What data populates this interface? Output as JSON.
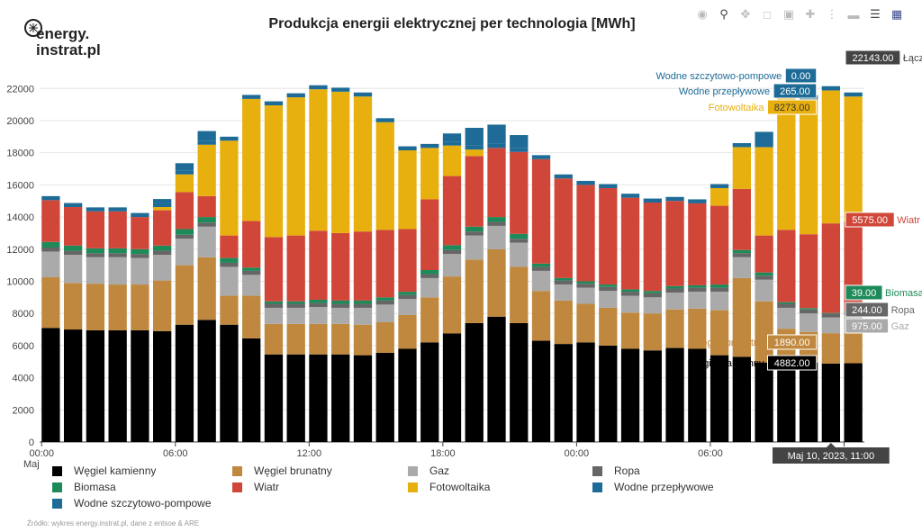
{
  "title": "Produkcja energii elektrycznej per technologia [MWh]",
  "logo": {
    "line1": "energy.",
    "line2": "instrat.pl"
  },
  "source_text": "Źródło: wykres energy.instrat.pl, dane z entsoe & ARE",
  "x_sub_label": "Maj",
  "toolbar": [
    "camera-icon",
    "zoom-icon",
    "pan-icon",
    "box-select-icon",
    "zoom-in-icon",
    "autoscale-icon",
    "spike-lines-icon",
    "hover-closest-icon",
    "hover-compare-icon",
    "plotly-logo-icon"
  ],
  "chart_data": {
    "type": "bar",
    "stacked": true,
    "x": [
      "00:00",
      "01:00",
      "02:00",
      "03:00",
      "04:00",
      "05:00",
      "06:00",
      "07:00",
      "08:00",
      "09:00",
      "10:00",
      "11:00",
      "12:00",
      "13:00",
      "14:00",
      "15:00",
      "16:00",
      "17:00",
      "18:00",
      "19:00",
      "20:00",
      "21:00",
      "22:00",
      "23:00",
      "00:00",
      "01:00",
      "02:00",
      "03:00",
      "04:00",
      "05:00",
      "06:00",
      "07:00",
      "08:00",
      "09:00",
      "10:00",
      "11:00",
      "12:00"
    ],
    "x_tick_labels": [
      "00:00",
      "06:00",
      "12:00",
      "18:00",
      "00:00",
      "06:00",
      "12:00"
    ],
    "ylim": [
      0,
      22800
    ],
    "y_ticks": [
      0,
      2000,
      4000,
      6000,
      8000,
      10000,
      12000,
      14000,
      16000,
      18000,
      20000,
      22000
    ],
    "series": [
      {
        "name": "Węgiel kamienny",
        "color": "#000000",
        "values": [
          7100,
          7000,
          6950,
          6950,
          6950,
          6900,
          7300,
          7600,
          7300,
          6450,
          5450,
          5450,
          5450,
          5450,
          5400,
          5550,
          5800,
          6200,
          6750,
          7400,
          7800,
          7400,
          6300,
          6100,
          6200,
          6000,
          5800,
          5700,
          5850,
          5800,
          5400,
          5300,
          4950,
          4800,
          4950,
          4882,
          4900
        ]
      },
      {
        "name": "Węgiel brunatny",
        "color": "#c0883e",
        "values": [
          3150,
          2900,
          2900,
          2850,
          2850,
          3150,
          3700,
          3900,
          1800,
          2650,
          1900,
          1900,
          1900,
          1900,
          1900,
          1900,
          2100,
          2800,
          3550,
          3950,
          4200,
          3500,
          3100,
          2700,
          2400,
          2350,
          2250,
          2300,
          2400,
          2500,
          2800,
          4900,
          3800,
          2250,
          1900,
          1890,
          1900
        ]
      },
      {
        "name": "Gaz",
        "color": "#aaaaaa",
        "values": [
          1600,
          1750,
          1650,
          1700,
          1650,
          1600,
          1650,
          1900,
          1800,
          1300,
          1000,
          1000,
          1050,
          1000,
          1050,
          1100,
          1000,
          1200,
          1400,
          1500,
          1450,
          1500,
          1250,
          1000,
          1000,
          1050,
          1050,
          1000,
          1050,
          1050,
          1150,
          1300,
          1350,
          1300,
          1150,
          975,
          1100
        ]
      },
      {
        "name": "Ropa",
        "color": "#666666",
        "values": [
          250,
          250,
          250,
          250,
          250,
          250,
          250,
          250,
          250,
          250,
          250,
          250,
          250,
          250,
          250,
          250,
          250,
          250,
          250,
          250,
          250,
          250,
          250,
          250,
          250,
          250,
          250,
          250,
          250,
          250,
          250,
          250,
          250,
          250,
          250,
          244,
          250
        ]
      },
      {
        "name": "Biomasa",
        "color": "#1e8a5a",
        "values": [
          350,
          320,
          300,
          300,
          300,
          320,
          350,
          350,
          300,
          200,
          150,
          150,
          200,
          200,
          200,
          200,
          200,
          250,
          300,
          300,
          300,
          300,
          200,
          150,
          150,
          150,
          150,
          150,
          150,
          150,
          200,
          200,
          200,
          100,
          80,
          39,
          50
        ]
      },
      {
        "name": "Wiatr",
        "color": "#d0473a",
        "values": [
          2600,
          2400,
          2300,
          2300,
          2000,
          2200,
          2300,
          1300,
          1400,
          2900,
          4000,
          4100,
          4300,
          4200,
          4300,
          4200,
          3900,
          4400,
          4300,
          4400,
          4300,
          5100,
          6500,
          6200,
          6000,
          6000,
          5700,
          5500,
          5300,
          5100,
          4900,
          3800,
          2300,
          4500,
          4600,
          5575,
          5500
        ]
      },
      {
        "name": "Fotowoltaika",
        "color": "#e8b00f",
        "values": [
          0,
          0,
          0,
          0,
          0,
          200,
          1100,
          3200,
          5900,
          7600,
          8200,
          8600,
          8800,
          8800,
          8400,
          6700,
          4900,
          3200,
          1900,
          400,
          0,
          0,
          0,
          0,
          0,
          0,
          0,
          0,
          0,
          0,
          1100,
          2600,
          5500,
          8300,
          8400,
          8273,
          7800
        ]
      },
      {
        "name": "Wodne przepływowe",
        "color": "#1d6b96",
        "values": [
          250,
          250,
          250,
          250,
          250,
          250,
          250,
          250,
          250,
          250,
          250,
          250,
          250,
          250,
          250,
          250,
          250,
          250,
          250,
          250,
          250,
          250,
          250,
          250,
          250,
          250,
          250,
          250,
          250,
          250,
          250,
          250,
          250,
          250,
          250,
          265,
          250
        ]
      },
      {
        "name": "Wodne szczytowo-pompowe",
        "color": "#1d6b96",
        "values": [
          0,
          0,
          0,
          0,
          0,
          250,
          450,
          600,
          0,
          0,
          0,
          0,
          0,
          0,
          0,
          0,
          0,
          0,
          500,
          1100,
          1200,
          800,
          0,
          0,
          0,
          0,
          0,
          0,
          0,
          0,
          0,
          0,
          700,
          0,
          0,
          0,
          0
        ]
      }
    ],
    "hover": {
      "index": 35,
      "x_label": "Maj 10, 2023, 11:00",
      "total_label": "Łącznie",
      "total_value": "22143.00",
      "values": [
        "4882.00",
        "1890.00",
        "975.00",
        "244.00",
        "39.00",
        "5575.00",
        "8273.00",
        "265.00",
        "0.00"
      ]
    }
  },
  "legend": [
    {
      "name": "Węgiel kamienny",
      "color": "#000000"
    },
    {
      "name": "Węgiel brunatny",
      "color": "#c0883e"
    },
    {
      "name": "Gaz",
      "color": "#aaaaaa"
    },
    {
      "name": "Ropa",
      "color": "#666666"
    },
    {
      "name": "Biomasa",
      "color": "#1e8a5a"
    },
    {
      "name": "Wiatr",
      "color": "#d0473a"
    },
    {
      "name": "Fotowoltaika",
      "color": "#e8b00f"
    },
    {
      "name": "Wodne przepływowe",
      "color": "#1d6b96"
    },
    {
      "name": "Wodne szczytowo-pompowe",
      "color": "#1d6b96"
    }
  ]
}
